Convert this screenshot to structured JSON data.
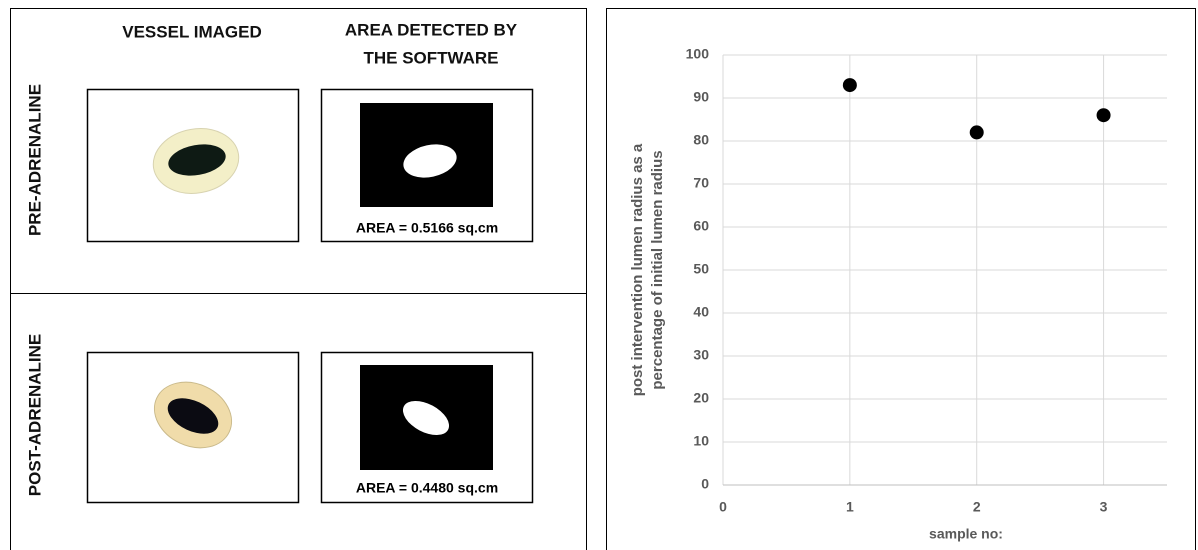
{
  "panel": {
    "column_headers": [
      "VESSEL IMAGED",
      [
        "AREA DETECTED BY",
        "THE SOFTWARE"
      ]
    ],
    "rows": [
      {
        "label": "PRE-ADRENALINE",
        "caption": "AREA = 0.5166 sq.cm"
      },
      {
        "label": "POST-ADRENALINE",
        "caption": "AREA = 0.4480 sq.cm"
      }
    ]
  },
  "chart_data": {
    "type": "scatter",
    "x": [
      1,
      2,
      3
    ],
    "series": [
      {
        "values": [
          93,
          82,
          86
        ],
        "color": "#000000"
      }
    ],
    "xlabel": "sample no:",
    "ylabel": [
      "post intervention lumen radius as a",
      "percentage of initial lumen radius"
    ],
    "xlim": [
      0,
      3.5
    ],
    "xticks": [
      0,
      1,
      2,
      3
    ],
    "ylim": [
      0,
      100
    ],
    "yticks": [
      0,
      10,
      20,
      30,
      40,
      50,
      60,
      70,
      80,
      90,
      100
    ],
    "grid": true
  }
}
